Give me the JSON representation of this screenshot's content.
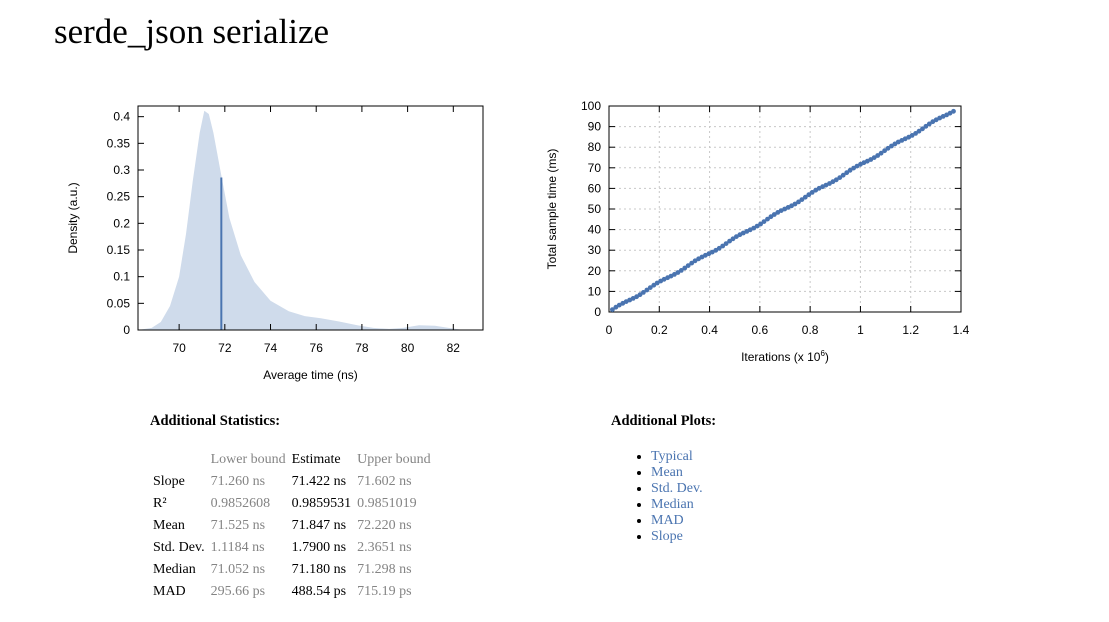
{
  "page": {
    "title": "serde_json serialize"
  },
  "chart_data": [
    {
      "type": "area",
      "xlabel": "Average time (ns)",
      "ylabel": "Density (a.u.)",
      "xlim": [
        68.2,
        83.3
      ],
      "ylim": [
        0,
        0.42
      ],
      "xticks": [
        70,
        72,
        74,
        76,
        78,
        80,
        82
      ],
      "xtick_labels": [
        "70",
        "72",
        "74",
        "76",
        "78",
        "80",
        "82"
      ],
      "yticks": [
        0,
        0.05,
        0.1,
        0.15,
        0.2,
        0.25,
        0.3,
        0.35,
        0.4
      ],
      "ytick_labels": [
        "0",
        "0.05",
        "0.1",
        "0.15",
        "0.2",
        "0.25",
        "0.3",
        "0.35",
        "0.4"
      ],
      "grid": false,
      "series": [
        {
          "x": [
            68.2,
            68.8,
            69.2,
            69.6,
            70.0,
            70.3,
            70.6,
            70.9,
            71.1,
            71.3,
            71.5,
            71.8,
            72.2,
            72.7,
            73.3,
            74.0,
            74.8,
            75.5,
            76.2,
            77.0,
            77.8,
            78.5,
            79.2,
            79.8,
            80.5,
            81.2,
            81.8,
            82.3,
            82.8
          ],
          "y": [
            0.0,
            0.004,
            0.015,
            0.045,
            0.1,
            0.18,
            0.28,
            0.37,
            0.411,
            0.405,
            0.37,
            0.3,
            0.21,
            0.14,
            0.09,
            0.055,
            0.035,
            0.026,
            0.022,
            0.016,
            0.009,
            0.004,
            0.002,
            0.004,
            0.009,
            0.008,
            0.004,
            0.001,
            0.0
          ]
        }
      ],
      "marker": {
        "x": 71.847,
        "y": 0.286
      },
      "colors": {
        "fill": "#cfdbeb",
        "line": "#4a74b0"
      }
    },
    {
      "type": "scatter",
      "xlabel": "Iterations (x 10",
      "xlabel_sup": "6",
      "xlabel_end": ")",
      "ylabel": "Total sample time (ms)",
      "xlim": [
        0,
        1.4
      ],
      "ylim": [
        0,
        100
      ],
      "xticks": [
        0,
        0.2,
        0.4,
        0.6,
        0.8,
        1,
        1.2,
        1.4
      ],
      "xtick_labels": [
        "0",
        "0.2",
        "0.4",
        "0.6",
        "0.8",
        "1",
        "1.2",
        "1.4"
      ],
      "yticks": [
        0,
        10,
        20,
        30,
        40,
        50,
        60,
        70,
        80,
        90,
        100
      ],
      "ytick_labels": [
        "0",
        "10",
        "20",
        "30",
        "40",
        "50",
        "60",
        "70",
        "80",
        "90",
        "100"
      ],
      "grid": true,
      "slope_ms_per_million": 71.422,
      "iterations_max": 1.37,
      "num_points": 100,
      "colors": {
        "points": "#4a74b0"
      }
    }
  ],
  "stats": {
    "heading": "Additional Statistics:",
    "columns": [
      "",
      "Lower bound",
      "Estimate",
      "Upper bound"
    ],
    "rows": [
      {
        "label": "Slope",
        "lower": "71.260 ns",
        "estimate": "71.422 ns",
        "upper": "71.602 ns"
      },
      {
        "label": "R²",
        "lower": "0.9852608",
        "estimate": "0.9859531",
        "upper": "0.9851019"
      },
      {
        "label": "Mean",
        "lower": "71.525 ns",
        "estimate": "71.847 ns",
        "upper": "72.220 ns"
      },
      {
        "label": "Std. Dev.",
        "lower": "1.1184 ns",
        "estimate": "1.7900 ns",
        "upper": "2.3651 ns"
      },
      {
        "label": "Median",
        "lower": "71.052 ns",
        "estimate": "71.180 ns",
        "upper": "71.298 ns"
      },
      {
        "label": "MAD",
        "lower": "295.66 ps",
        "estimate": "488.54 ps",
        "upper": "715.19 ps"
      }
    ]
  },
  "plots": {
    "heading": "Additional Plots:",
    "links": [
      "Typical",
      "Mean",
      "Std. Dev.",
      "Median",
      "MAD",
      "Slope"
    ]
  }
}
